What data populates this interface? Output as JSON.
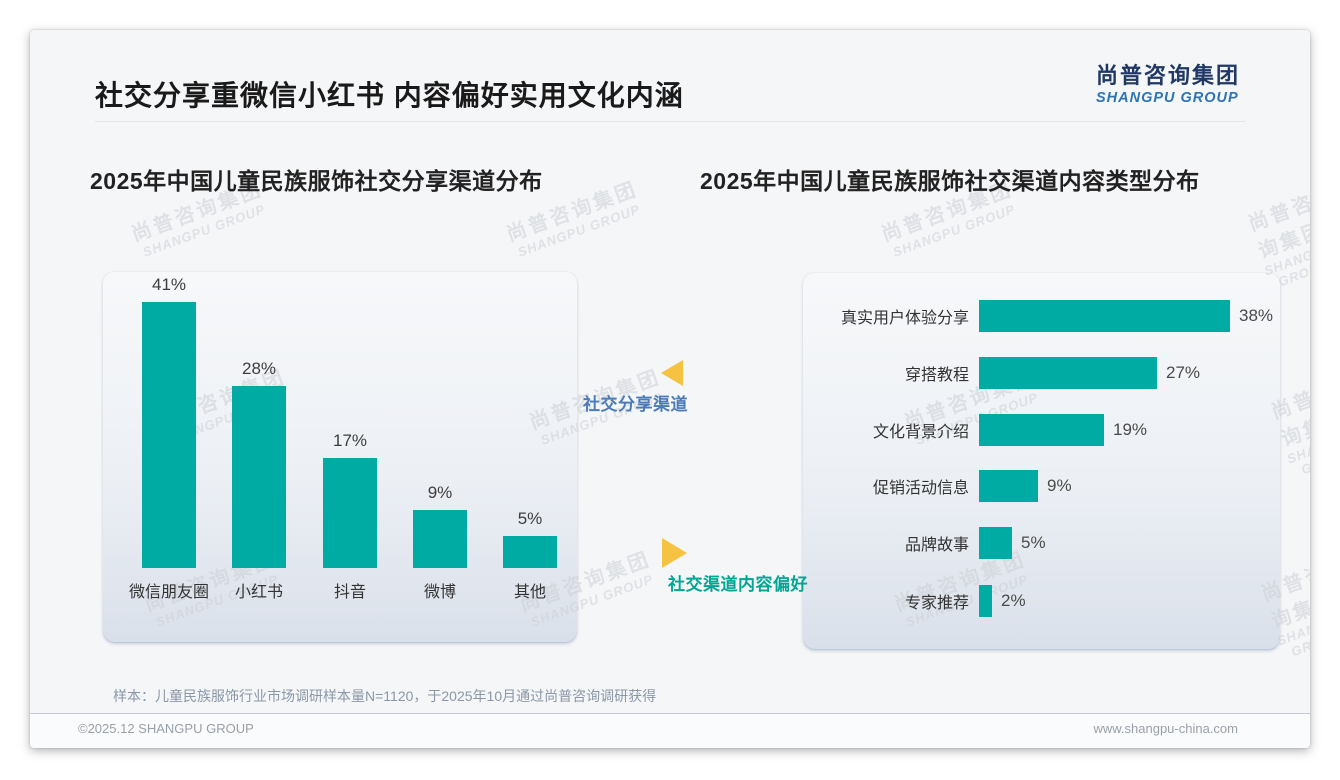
{
  "page": {
    "title": "社交分享重微信小红书 内容偏好实用文化内涵",
    "logo_cn": "尚普咨询集团",
    "logo_en": "SHANGPU GROUP",
    "sample_note": "样本：儿童民族服饰行业市场调研样本量N=1120，于2025年10月通过尚普咨询调研获得",
    "footer_copyright": "©2025.12 SHANGPU GROUP",
    "footer_website": "www.shangpu-china.com",
    "watermark_cn": "尚普咨询集团",
    "watermark_en": "SHANGPU GROUP"
  },
  "annotations": {
    "left_flow_label": "社交分享渠道",
    "right_flow_label": "社交渠道内容偏好",
    "triangle_color": "#f5c242",
    "left_label_color": "#4b7bb8",
    "right_label_color": "#00a693"
  },
  "chart_data": [
    {
      "type": "bar",
      "title": "2025年中国儿童民族服饰社交分享渠道分布",
      "categories": [
        "微信朋友圈",
        "小红书",
        "抖音",
        "微博",
        "其他"
      ],
      "values": [
        41,
        28,
        17,
        9,
        5
      ],
      "unit": "%",
      "bar_color": "#00aba3",
      "ylim": [
        0,
        45
      ],
      "grid": false,
      "legend_position": "none",
      "value_labels": [
        "41%",
        "28%",
        "17%",
        "9%",
        "5%"
      ]
    },
    {
      "type": "bar",
      "orientation": "horizontal",
      "title": "2025年中国儿童民族服饰社交渠道内容类型分布",
      "categories": [
        "真实用户体验分享",
        "穿搭教程",
        "文化背景介绍",
        "促销活动信息",
        "品牌故事",
        "专家推荐"
      ],
      "values": [
        38,
        27,
        19,
        9,
        5,
        2
      ],
      "unit": "%",
      "bar_color": "#00aba3",
      "xlim": [
        0,
        40
      ],
      "grid": false,
      "legend_position": "none",
      "value_labels": [
        "38%",
        "27%",
        "19%",
        "9%",
        "5%",
        "2%"
      ]
    }
  ]
}
